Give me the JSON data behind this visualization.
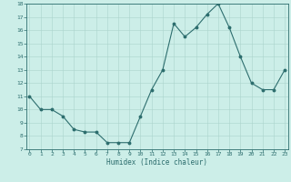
{
  "x": [
    0,
    1,
    2,
    3,
    4,
    5,
    6,
    7,
    8,
    9,
    10,
    11,
    12,
    13,
    14,
    15,
    16,
    17,
    18,
    19,
    20,
    21,
    22,
    23
  ],
  "y": [
    11.0,
    10.0,
    10.0,
    9.5,
    8.5,
    8.3,
    8.3,
    7.5,
    7.5,
    7.5,
    9.5,
    11.5,
    13.0,
    16.5,
    15.5,
    16.2,
    17.2,
    18.0,
    16.2,
    14.0,
    12.0,
    11.5,
    11.5,
    13.0
  ],
  "xlabel": "Humidex (Indice chaleur)",
  "ylim": [
    7,
    18
  ],
  "xlim": [
    -0.3,
    23.3
  ],
  "yticks": [
    7,
    8,
    9,
    10,
    11,
    12,
    13,
    14,
    15,
    16,
    17,
    18
  ],
  "xticks": [
    0,
    1,
    2,
    3,
    4,
    5,
    6,
    7,
    8,
    9,
    10,
    11,
    12,
    13,
    14,
    15,
    16,
    17,
    18,
    19,
    20,
    21,
    22,
    23
  ],
  "line_color": "#2d6e6e",
  "marker_color": "#2d6e6e",
  "bg_color": "#cceee8",
  "grid_color": "#aad4cc",
  "axis_color": "#2d6e6e",
  "tick_label_color": "#2d6e6e",
  "xlabel_color": "#2d6e6e"
}
